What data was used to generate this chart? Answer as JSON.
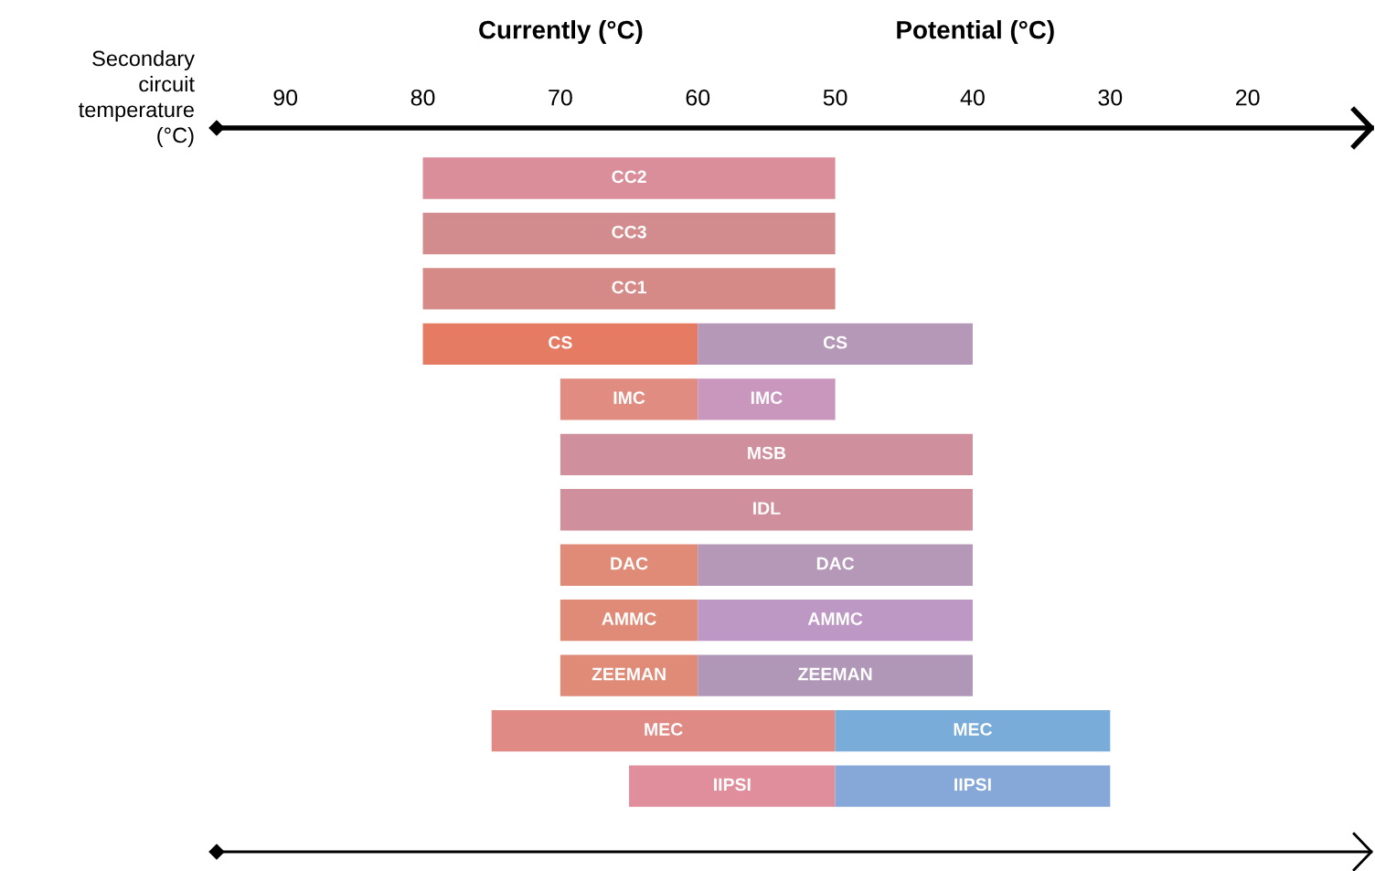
{
  "chart_data": {
    "type": "bar",
    "orientation": "horizontal",
    "ylabel": "Secondary\ncircuit\ntemperature\n(°C)",
    "annotations": [
      "Currently (°C)",
      "Potential (°C)"
    ],
    "categories": [
      "CC2",
      "CC3",
      "CC1",
      "CS",
      "IMC",
      "MSB",
      "IDL",
      "DAC",
      "AMMC",
      "ZEEMAN",
      "MEC",
      "IIPSI"
    ],
    "series": [
      {
        "values": [
          30,
          30,
          30,
          20,
          10,
          30,
          30,
          10,
          10,
          10,
          25,
          15
        ],
        "base": [
          50,
          50,
          50,
          60,
          60,
          40,
          40,
          60,
          60,
          60,
          50,
          50
        ],
        "colors": [
          "#d98e9a",
          "#d38c8e",
          "#d68a88",
          "#e57b62",
          "#e08c80",
          "#cf8f9c",
          "#cf8f9c",
          "#e08a78",
          "#e08a78",
          "#e08a78",
          "#e08a85",
          "#e08e9c"
        ]
      },
      {
        "values": [
          null,
          null,
          null,
          20,
          10,
          null,
          null,
          20,
          20,
          20,
          20,
          20
        ],
        "base": [
          null,
          null,
          null,
          40,
          50,
          null,
          null,
          40,
          40,
          40,
          30,
          30
        ],
        "colors": [
          null,
          null,
          null,
          "#b597b8",
          "#c996be",
          "#b597b8",
          "#b597b8",
          "#b597b8",
          "#bd98c4",
          "#b097b8",
          "#79acd8",
          "#85a8d8"
        ]
      }
    ],
    "xlim": [
      95,
      11
    ],
    "xticks": [
      90,
      80,
      70,
      60,
      50,
      40,
      30,
      20
    ],
    "grid": false,
    "legend": false
  }
}
